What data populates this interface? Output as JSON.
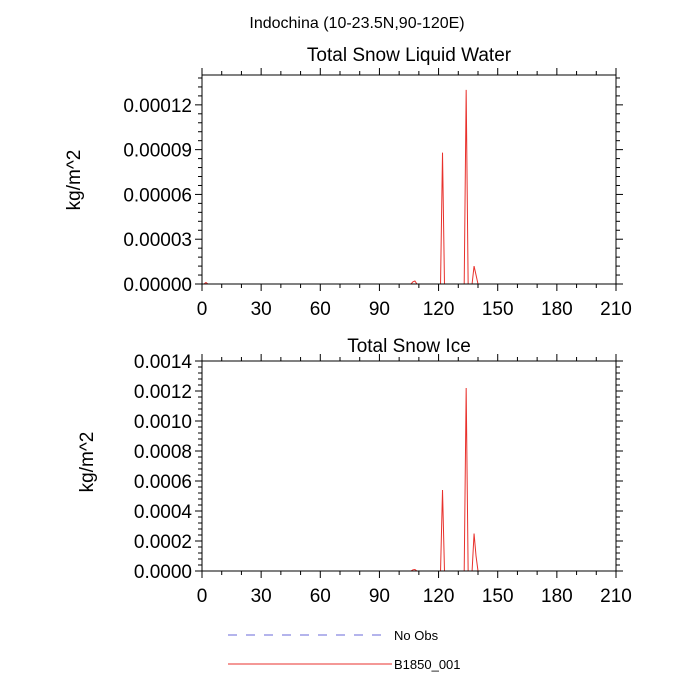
{
  "figure": {
    "title": "Indochina (10-23.5N,90-120E)"
  },
  "chart_data": [
    {
      "type": "line",
      "title": "Total Snow Liquid Water",
      "xlabel": "",
      "ylabel": "kg/m^2",
      "xlim": [
        0,
        210
      ],
      "ylim": [
        0,
        0.00014
      ],
      "xticks": [
        0,
        30,
        60,
        90,
        120,
        150,
        180,
        210
      ],
      "xtick_labels": [
        "0",
        "30",
        "60",
        "90",
        "120",
        "150",
        "180",
        "210"
      ],
      "yticks": [
        0,
        3e-05,
        6e-05,
        9e-05,
        0.00012
      ],
      "ytick_labels": [
        "0.00000",
        "0.00003",
        "0.00006",
        "0.00009",
        "0.00012"
      ],
      "grid": false,
      "series": [
        {
          "name": "B1850_001",
          "color": "#e8312c",
          "x": [
            1,
            2,
            3,
            106,
            107,
            108,
            109,
            121,
            122,
            123,
            133,
            134,
            135,
            137,
            138,
            139,
            140
          ],
          "y": [
            0,
            1e-06,
            0,
            0,
            1.5e-06,
            2e-06,
            0,
            0,
            8.8e-05,
            0,
            0,
            0.00013,
            0,
            0,
            1.2e-05,
            6e-06,
            0
          ]
        }
      ]
    },
    {
      "type": "line",
      "title": "Total Snow Ice",
      "xlabel": "",
      "ylabel": "kg/m^2",
      "xlim": [
        0,
        210
      ],
      "ylim": [
        0,
        0.0014
      ],
      "xticks": [
        0,
        30,
        60,
        90,
        120,
        150,
        180,
        210
      ],
      "xtick_labels": [
        "0",
        "30",
        "60",
        "90",
        "120",
        "150",
        "180",
        "210"
      ],
      "yticks": [
        0,
        0.0002,
        0.0004,
        0.0006,
        0.0008,
        0.001,
        0.0012,
        0.0014
      ],
      "ytick_labels": [
        "0.0000",
        "0.0002",
        "0.0004",
        "0.0006",
        "0.0008",
        "0.0010",
        "0.0012",
        "0.0014"
      ],
      "grid": false,
      "series": [
        {
          "name": "B1850_001",
          "color": "#e8312c",
          "x": [
            106,
            107,
            108,
            109,
            121,
            122,
            123,
            133,
            134,
            135,
            137,
            138,
            139,
            140
          ],
          "y": [
            0,
            8e-06,
            1e-05,
            0,
            0,
            0.00054,
            0,
            0,
            0.00122,
            0,
            0,
            0.00025,
            0.0001,
            0
          ]
        }
      ]
    }
  ],
  "legend": {
    "placement": "bottom",
    "entries": [
      {
        "label": "No Obs",
        "color": "#6a6ad8",
        "style": "dashed"
      },
      {
        "label": "B1850_001",
        "color": "#e8312c",
        "style": "solid"
      }
    ]
  }
}
